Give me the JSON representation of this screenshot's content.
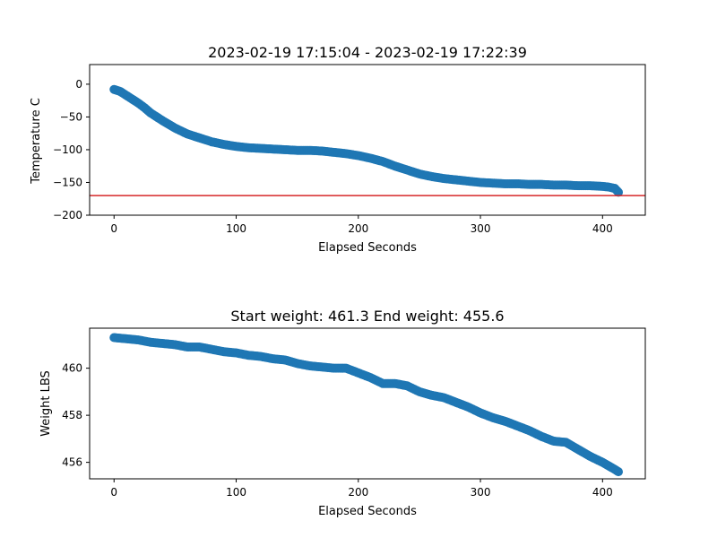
{
  "chart_data": [
    {
      "type": "scatter",
      "title": "2023-02-19 17:15:04 - 2023-02-19 17:22:39",
      "xlabel": "Elapsed Seconds",
      "ylabel": "Temperature C",
      "xlim": [
        -20,
        435
      ],
      "ylim": [
        -200,
        30
      ],
      "xticks": [
        0,
        100,
        200,
        300,
        400
      ],
      "yticks": [
        0,
        -50,
        -100,
        -150,
        -200
      ],
      "marker_color": "#1f77b4",
      "reference_line": {
        "y": -170,
        "color": "#d62728"
      },
      "points": {
        "x": [
          0,
          5,
          10,
          15,
          20,
          25,
          30,
          40,
          50,
          60,
          70,
          80,
          90,
          100,
          110,
          120,
          130,
          140,
          150,
          160,
          170,
          180,
          190,
          200,
          210,
          220,
          230,
          240,
          250,
          260,
          270,
          280,
          290,
          300,
          310,
          320,
          330,
          340,
          350,
          360,
          370,
          380,
          390,
          400,
          405,
          410,
          413
        ],
        "y": [
          -8,
          -11,
          -17,
          -23,
          -29,
          -36,
          -44,
          -56,
          -67,
          -76,
          -82,
          -88,
          -92,
          -95,
          -97,
          -98,
          -99,
          -100,
          -101,
          -101,
          -102,
          -104,
          -106,
          -109,
          -113,
          -118,
          -125,
          -131,
          -137,
          -141,
          -144,
          -146,
          -148,
          -150,
          -151,
          -152,
          -152,
          -153,
          -153,
          -154,
          -154,
          -155,
          -155,
          -156,
          -157,
          -159,
          -165
        ]
      }
    },
    {
      "type": "scatter",
      "title": "Start weight: 461.3 End weight: 455.6",
      "xlabel": "Elapsed Seconds",
      "ylabel": "Weight LBS",
      "xlim": [
        -20,
        435
      ],
      "ylim": [
        455.3,
        461.7
      ],
      "xticks": [
        0,
        100,
        200,
        300,
        400
      ],
      "yticks": [
        456,
        458,
        460
      ],
      "marker_color": "#1f77b4",
      "points": {
        "x": [
          0,
          10,
          20,
          30,
          40,
          50,
          60,
          70,
          80,
          90,
          100,
          110,
          120,
          130,
          140,
          150,
          160,
          170,
          180,
          190,
          200,
          210,
          220,
          230,
          240,
          250,
          260,
          270,
          280,
          290,
          300,
          310,
          320,
          330,
          340,
          350,
          360,
          370,
          380,
          390,
          400,
          410,
          413
        ],
        "y": [
          461.3,
          461.25,
          461.2,
          461.1,
          461.05,
          461.0,
          460.9,
          460.9,
          460.8,
          460.7,
          460.65,
          460.55,
          460.5,
          460.4,
          460.35,
          460.2,
          460.1,
          460.05,
          460.0,
          460.0,
          459.8,
          459.6,
          459.35,
          459.35,
          459.25,
          459.0,
          458.85,
          458.75,
          458.55,
          458.35,
          458.1,
          457.9,
          457.75,
          457.55,
          457.35,
          457.1,
          456.9,
          456.85,
          456.55,
          456.25,
          456.0,
          455.7,
          455.6
        ]
      }
    }
  ]
}
